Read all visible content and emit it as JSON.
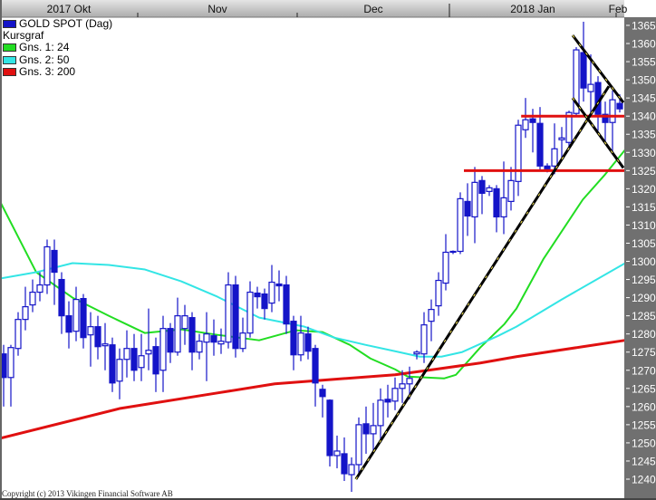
{
  "chart_data": {
    "type": "candlestick",
    "title": "GOLD SPOT (Dag)",
    "subtitle": "Kursgraf",
    "y_axis": {
      "side": "right",
      "ylim": [
        1236,
        1368
      ],
      "ticks": [
        1240,
        1245,
        1250,
        1255,
        1260,
        1265,
        1270,
        1275,
        1280,
        1285,
        1290,
        1295,
        1300,
        1305,
        1310,
        1315,
        1320,
        1325,
        1330,
        1335,
        1340,
        1345,
        1350,
        1355,
        1360,
        1365
      ]
    },
    "x_axis": {
      "position": "top",
      "months": [
        {
          "label": "2017 Okt",
          "start": -0.5
        },
        {
          "label": "Nov",
          "start": 18.5
        },
        {
          "label": "Dec",
          "start": 40.5
        },
        {
          "label": "2018 Jan",
          "start": 61.5
        },
        {
          "label": "Feb",
          "start": 84.5
        }
      ]
    },
    "grid": false,
    "legend_placement": "top-left",
    "colors": {
      "candle": "#1414c8",
      "ma24": "#22dd22",
      "ma50": "#33e5e5",
      "ma200": "#e01010",
      "header": "#c4c4c4",
      "axis_panel": "#707070"
    },
    "legend": [
      {
        "label": "GOLD SPOT (Dag)",
        "color": "#1414c8"
      },
      {
        "label": "Gns. 1: 24",
        "color": "#22dd22"
      },
      {
        "label": "Gns. 2: 50",
        "color": "#33e5e5"
      },
      {
        "label": "Gns. 3: 200",
        "color": "#e01010"
      }
    ],
    "ohlc": [
      [
        1274.5,
        1277,
        1260,
        1268
      ],
      [
        1268,
        1277,
        1260,
        1276.25
      ],
      [
        1276,
        1286,
        1274,
        1284
      ],
      [
        1284,
        1293,
        1281,
        1287.5
      ],
      [
        1288,
        1295,
        1286,
        1291.5
      ],
      [
        1291.5,
        1297,
        1289,
        1293.5
      ],
      [
        1293.5,
        1306,
        1291,
        1304
      ],
      [
        1303,
        1306,
        1288,
        1297
      ],
      [
        1295,
        1297,
        1280,
        1285
      ],
      [
        1285,
        1289,
        1276,
        1280.5
      ],
      [
        1280.75,
        1293,
        1278,
        1289.5
      ],
      [
        1289.75,
        1291,
        1276,
        1279
      ],
      [
        1279.75,
        1286,
        1271,
        1282
      ],
      [
        1282,
        1285,
        1273,
        1276.5
      ],
      [
        1276.75,
        1283,
        1270,
        1277.25
      ],
      [
        1277,
        1279,
        1264,
        1266.5
      ],
      [
        1267,
        1276,
        1262,
        1273
      ],
      [
        1273,
        1281,
        1268,
        1276
      ],
      [
        1276,
        1280,
        1267,
        1270
      ],
      [
        1270.75,
        1280,
        1267,
        1274
      ],
      [
        1274.5,
        1287,
        1270,
        1275.5
      ],
      [
        1276.5,
        1279,
        1264,
        1269
      ],
      [
        1270,
        1285,
        1264,
        1281.5
      ],
      [
        1281.5,
        1283,
        1272,
        1275
      ],
      [
        1275,
        1290,
        1274,
        1285
      ],
      [
        1281.5,
        1288,
        1277,
        1285
      ],
      [
        1284.5,
        1286,
        1270,
        1275
      ],
      [
        1275,
        1280,
        1273,
        1278
      ],
      [
        1277.75,
        1286,
        1267,
        1280
      ],
      [
        1279.5,
        1284,
        1274,
        1277.75
      ],
      [
        1277.25,
        1281.5,
        1274.5,
        1278
      ],
      [
        1277.75,
        1297,
        1276,
        1293.5
      ],
      [
        1293.5,
        1296,
        1273.5,
        1276
      ],
      [
        1276,
        1284.5,
        1275,
        1280.25
      ],
      [
        1280.25,
        1294.5,
        1279,
        1291.5
      ],
      [
        1291.25,
        1293,
        1287,
        1290.25
      ],
      [
        1291,
        1292.5,
        1284,
        1287
      ],
      [
        1288.5,
        1299,
        1286,
        1294.25
      ],
      [
        1293.75,
        1297.5,
        1289,
        1293.25
      ],
      [
        1293.5,
        1296,
        1280,
        1282.75
      ],
      [
        1283.5,
        1285,
        1270,
        1274.25
      ],
      [
        1274.25,
        1285,
        1272.5,
        1280.25
      ],
      [
        1280,
        1282,
        1273,
        1275.25
      ],
      [
        1276,
        1277,
        1260,
        1266.5
      ],
      [
        1264.75,
        1266,
        1257,
        1262.75
      ],
      [
        1261.75,
        1262,
        1243.5,
        1246.5
      ],
      [
        1246.5,
        1252,
        1243,
        1247.75
      ],
      [
        1247,
        1251.5,
        1239.5,
        1241.5
      ],
      [
        1241.25,
        1246,
        1236.5,
        1244
      ],
      [
        1244,
        1257,
        1241,
        1255
      ],
      [
        1255.25,
        1260,
        1247,
        1252.5
      ],
      [
        1252.5,
        1261,
        1247,
        1254.75
      ],
      [
        1254.75,
        1265,
        1250,
        1261.75
      ],
      [
        1262,
        1266,
        1257,
        1261.25
      ],
      [
        1261.5,
        1268,
        1259,
        1265
      ],
      [
        1265,
        1270,
        1261,
        1266.25
      ],
      [
        1266.25,
        1271,
        1262,
        1267.75
      ],
      [
        1274.5,
        1275.5,
        1273,
        1275
      ],
      [
        1274.5,
        1286,
        1272,
        1282.5
      ],
      [
        1283.5,
        1289.5,
        1278,
        1286.75
      ],
      [
        1287.75,
        1297,
        1285,
        1294.75
      ],
      [
        1294,
        1307.5,
        1292,
        1302.5
      ],
      [
        1302.5,
        1303,
        1302,
        1302.75
      ],
      [
        1302.75,
        1319,
        1302,
        1317.25
      ],
      [
        1316.5,
        1321.5,
        1307,
        1312.5
      ],
      [
        1312.25,
        1326,
        1305,
        1321.75
      ],
      [
        1322.25,
        1323.5,
        1313,
        1318.75
      ],
      [
        1319.25,
        1321,
        1318,
        1320.25
      ],
      [
        1320,
        1321,
        1308,
        1312.25
      ],
      [
        1312.25,
        1327.5,
        1307.5,
        1317.5
      ],
      [
        1316.5,
        1326,
        1314,
        1322.25
      ],
      [
        1322,
        1339,
        1318,
        1337.5
      ],
      [
        1336.25,
        1345,
        1334,
        1339
      ],
      [
        1339.25,
        1342,
        1330,
        1338.25
      ],
      [
        1338,
        1342.5,
        1325,
        1326.25
      ],
      [
        1326.25,
        1327,
        1324.5,
        1325.5
      ],
      [
        1326.25,
        1338,
        1324,
        1331
      ],
      [
        1333.5,
        1337,
        1328,
        1334
      ],
      [
        1332.75,
        1341.5,
        1331,
        1341
      ],
      [
        1340.75,
        1359,
        1340,
        1358.25
      ],
      [
        1357.5,
        1366,
        1344,
        1347.75
      ],
      [
        1346.75,
        1357,
        1340,
        1348.75
      ],
      [
        1349.25,
        1351,
        1336,
        1340.5
      ],
      [
        1340.5,
        1344,
        1333,
        1338.25
      ],
      [
        1338.25,
        1347,
        1330,
        1344.5
      ],
      [
        1343.5,
        1346,
        1341,
        1342
      ]
    ],
    "moving_averages": [
      {
        "name": "Gns. 1: 24",
        "period": 24,
        "points": [
          [
            -0.5,
            1316.5
          ],
          [
            4.5,
            1297
          ],
          [
            9.5,
            1290
          ],
          [
            14.5,
            1285
          ],
          [
            19.5,
            1280.25
          ],
          [
            24.5,
            1281.25
          ],
          [
            29.5,
            1279.75
          ],
          [
            35.25,
            1278.25
          ],
          [
            40.25,
            1281
          ],
          [
            44,
            1280.5
          ],
          [
            47.75,
            1277
          ],
          [
            50.6,
            1273.25
          ],
          [
            54,
            1270.25
          ],
          [
            55.75,
            1268.25
          ],
          [
            60.75,
            1267.75
          ],
          [
            62.4,
            1268.75
          ],
          [
            65.75,
            1276.25
          ],
          [
            69.1,
            1282.75
          ],
          [
            70.75,
            1287
          ],
          [
            74.5,
            1300.75
          ],
          [
            79.9,
            1317
          ],
          [
            82.9,
            1323.75
          ],
          [
            85.75,
            1330.75
          ]
        ]
      },
      {
        "name": "Gns. 2: 50",
        "period": 50,
        "points": [
          [
            -0.5,
            1295.25
          ],
          [
            4.5,
            1297
          ],
          [
            9.5,
            1299.5
          ],
          [
            14.5,
            1299
          ],
          [
            19.5,
            1297.75
          ],
          [
            24.5,
            1294.5
          ],
          [
            29.5,
            1290.25
          ],
          [
            35.25,
            1284.5
          ],
          [
            41.5,
            1282
          ],
          [
            45.6,
            1279
          ],
          [
            49.9,
            1277
          ],
          [
            54,
            1275.25
          ],
          [
            57.4,
            1273.75
          ],
          [
            60.4,
            1273.75
          ],
          [
            63.25,
            1275
          ],
          [
            68.25,
            1279.5
          ],
          [
            70.75,
            1282
          ],
          [
            77,
            1289.5
          ],
          [
            85.75,
            1299.5
          ]
        ]
      },
      {
        "name": "Gns. 3: 200",
        "period": 200,
        "points": [
          [
            -0.5,
            1251.25
          ],
          [
            16.1,
            1259.5
          ],
          [
            29.5,
            1263.75
          ],
          [
            37.4,
            1266.25
          ],
          [
            45.6,
            1267.5
          ],
          [
            54,
            1268.75
          ],
          [
            59.5,
            1270.25
          ],
          [
            65.75,
            1272
          ],
          [
            70.75,
            1273.75
          ],
          [
            85.75,
            1278.25
          ]
        ]
      }
    ],
    "annotations": {
      "support_lines": [
        {
          "price": 1340,
          "from": 71.4
        },
        {
          "price": 1325,
          "from": 63.5
        }
      ],
      "trend_lines": [
        {
          "from": [
            48.6,
            1240
          ],
          "to": [
            83.5,
            1348.25
          ]
        },
        {
          "from": [
            78.5,
            1362.25
          ],
          "to": [
            85.5,
            1343.75
          ]
        },
        {
          "from": [
            78.5,
            1345
          ],
          "to": [
            85.5,
            1325.75
          ]
        }
      ]
    }
  },
  "legend_text": {
    "title": "GOLD SPOT (Dag)",
    "subtitle": "Kursgraf",
    "ma1": "Gns. 1: 24",
    "ma2": "Gns. 2: 50",
    "ma3": "Gns. 3: 200"
  },
  "footer": {
    "copyright": "Copyright (c) 2013 Vikingen Financial Software AB"
  }
}
